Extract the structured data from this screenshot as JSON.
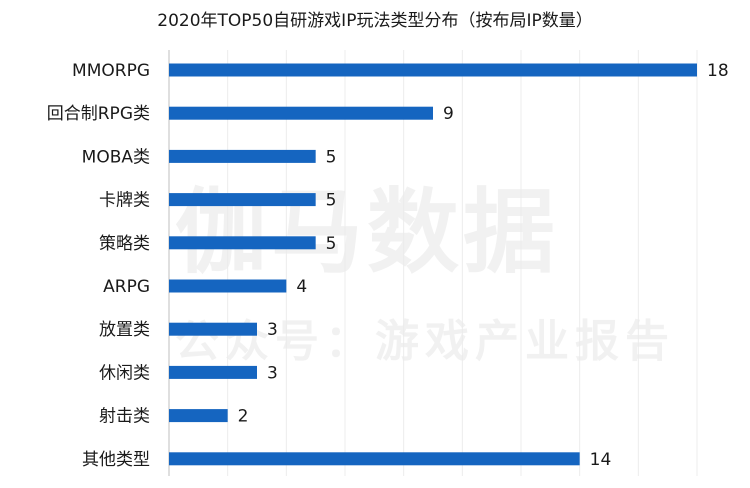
{
  "chart_data": {
    "type": "bar",
    "orientation": "horizontal",
    "title": "2020年TOP50自研游戏IP玩法类型分布（按布局IP数量）",
    "categories": [
      "MMORPG",
      "回合制RPG类",
      "MOBA类",
      "卡牌类",
      "策略类",
      "ARPG",
      "放置类",
      "休闲类",
      "射击类",
      "其他类型"
    ],
    "values": [
      18,
      9,
      5,
      5,
      5,
      4,
      3,
      3,
      2,
      14
    ],
    "xlim": [
      0,
      18
    ],
    "grid": true,
    "data_labels": true,
    "bar_color": "#1565c0"
  },
  "watermark": {
    "main": "伽马数据",
    "sub": "公众号：游戏产业报告"
  }
}
